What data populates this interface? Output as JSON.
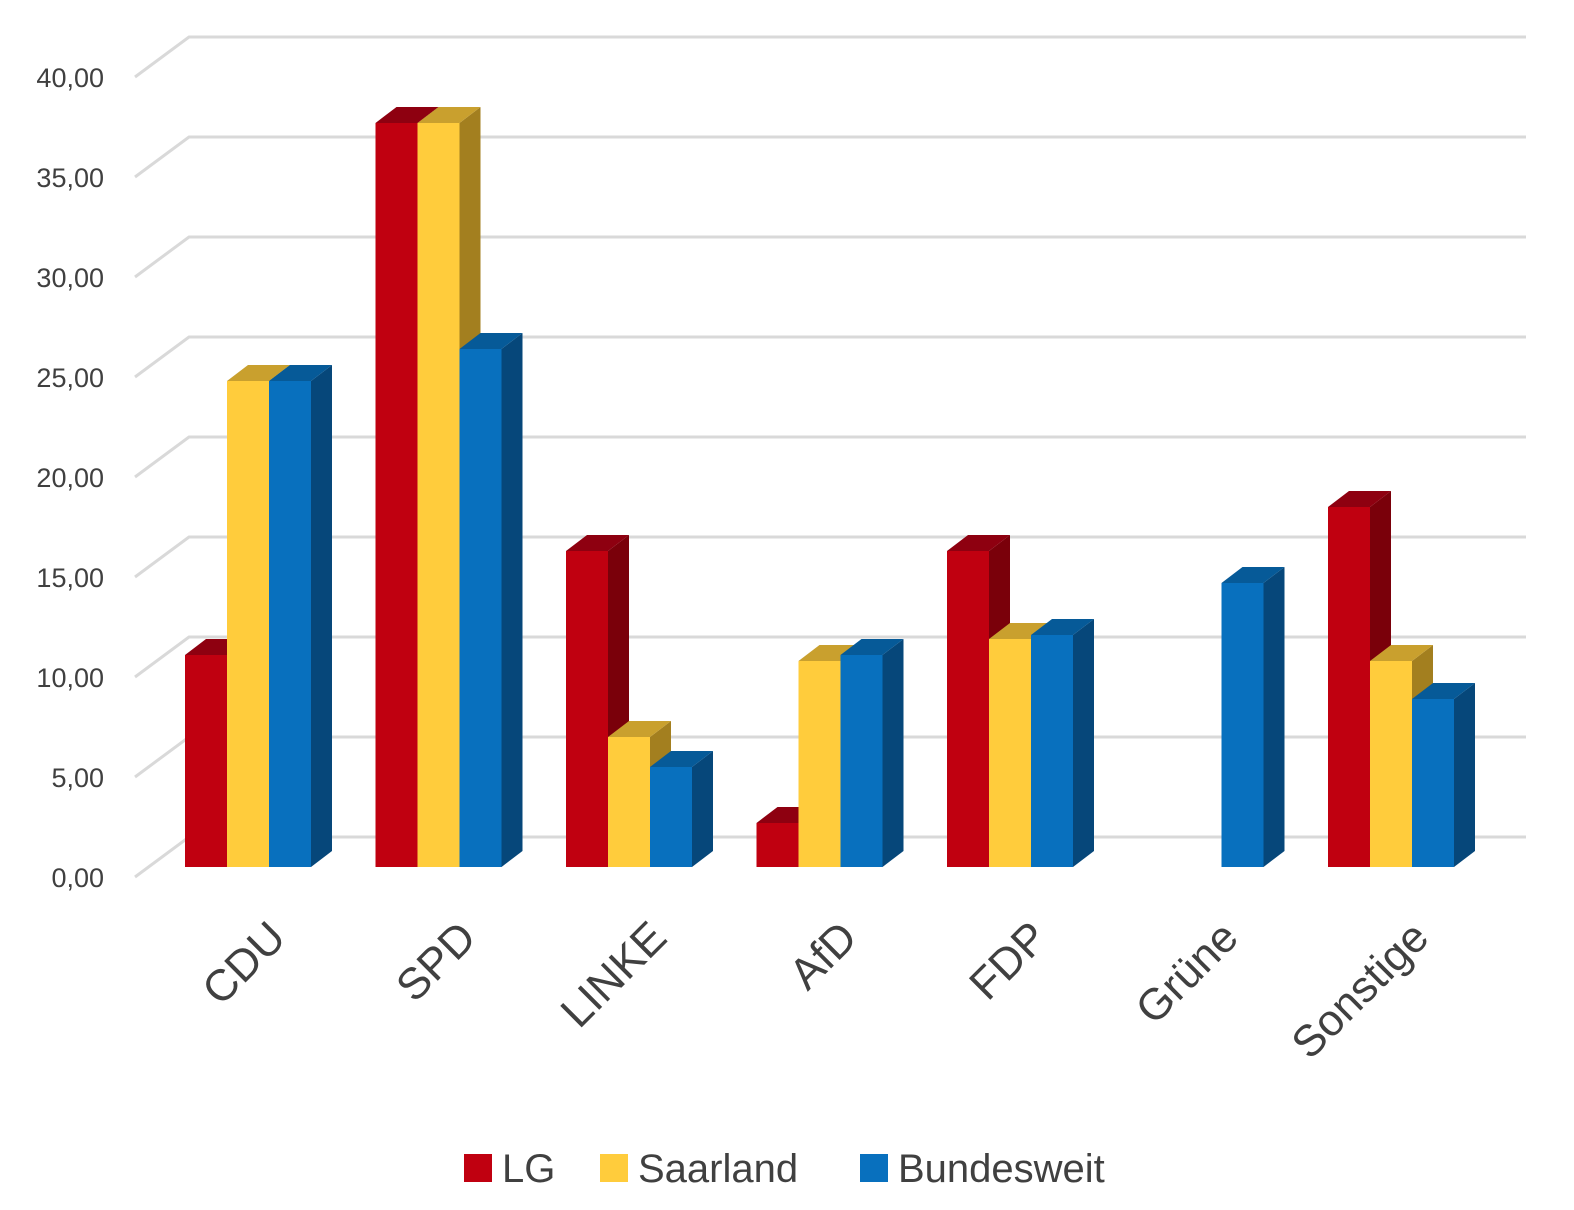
{
  "chart_data": {
    "type": "bar",
    "variant": "3d-clustered-column",
    "title": "",
    "xlabel": "",
    "ylabel": "",
    "categories": [
      "CDU",
      "SPD",
      "LINKE",
      "AfD",
      "FDP",
      "Grüne",
      "Sonstige"
    ],
    "series": [
      {
        "name": "LG",
        "values": [
          10.6,
          37.2,
          15.8,
          2.2,
          15.8,
          0,
          18.0
        ],
        "color": "#C00010",
        "side_color": "#7A000A",
        "top_color": "#8E0010"
      },
      {
        "name": "Saarland",
        "values": [
          24.3,
          37.2,
          6.5,
          10.3,
          11.4,
          0,
          10.3
        ],
        "color": "#FFCC3C",
        "side_color": "#A37F1F",
        "top_color": "#C9A02E"
      },
      {
        "name": "Bundesweit",
        "values": [
          24.3,
          25.9,
          5.0,
          10.6,
          11.6,
          14.2,
          8.4
        ],
        "color": "#0870BE",
        "side_color": "#06477A",
        "top_color": "#065A98"
      }
    ],
    "ylim": [
      0,
      40
    ],
    "yticks": [
      "0,00",
      "5,00",
      "10,00",
      "15,00",
      "20,00",
      "25,00",
      "30,00",
      "35,00",
      "40,00"
    ],
    "grid": true,
    "legend_position": "bottom",
    "grid_color": "#D9D9D9",
    "text_color": "#404040"
  }
}
